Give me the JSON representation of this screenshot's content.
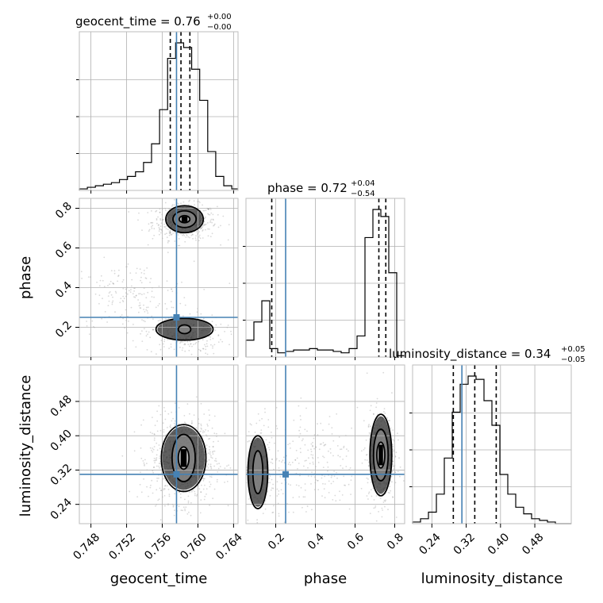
{
  "chart_data": {
    "type": "corner",
    "parameters": [
      "geocent_time",
      "phase",
      "luminosity_distance"
    ],
    "truths": {
      "geocent_time": 0.7576,
      "phase": 0.25,
      "luminosity_distance": 0.31
    },
    "titles": [
      {
        "param": "geocent_time",
        "text": "geocent_time = 0.76",
        "plus": "+0.00",
        "minus": "−0.00"
      },
      {
        "param": "phase",
        "text": "phase = 0.72",
        "plus": "+0.04",
        "minus": "−0.54"
      },
      {
        "param": "luminosity_distance",
        "text": "luminosity_distance = 0.34",
        "plus": "+0.05",
        "minus": "−0.05"
      }
    ],
    "axes": {
      "geocent_time": {
        "range": [
          0.7467,
          0.7645
        ],
        "ticks": [
          "0.748",
          "0.752",
          "0.756",
          "0.760",
          "0.764"
        ],
        "tick_values": [
          0.748,
          0.752,
          0.756,
          0.76,
          0.764
        ]
      },
      "phase": {
        "range": [
          0.05,
          0.85
        ],
        "ticks_x": [
          "0.2",
          "0.4",
          "0.6",
          "0.8"
        ],
        "tick_values_x": [
          0.2,
          0.4,
          0.6,
          0.8
        ],
        "ticks_y": [
          "0.2",
          "0.4",
          "0.6",
          "0.8"
        ],
        "tick_values_y": [
          0.2,
          0.4,
          0.6,
          0.8
        ]
      },
      "luminosity_distance": {
        "range": [
          0.195,
          0.565
        ],
        "ticks_x": [
          "0.24",
          "0.32",
          "0.40",
          "0.48"
        ],
        "tick_values_x": [
          0.24,
          0.32,
          0.4,
          0.48
        ],
        "ticks_y": [
          "0.24",
          "0.32",
          "0.40",
          "0.48"
        ],
        "tick_values_y": [
          0.24,
          0.32,
          0.4,
          0.48
        ]
      }
    },
    "quantiles": {
      "geocent_time": [
        0.7569,
        0.7581,
        0.7591
      ],
      "phase": [
        0.18,
        0.72,
        0.755
      ],
      "luminosity_distance": [
        0.29,
        0.34,
        0.39
      ]
    },
    "histograms": {
      "geocent_time": {
        "edges": [
          0.7467,
          0.7476,
          0.7485,
          0.7494,
          0.7503,
          0.7512,
          0.7521,
          0.753,
          0.7539,
          0.7548,
          0.7557,
          0.7566,
          0.7575,
          0.7584,
          0.7593,
          0.7602,
          0.7611,
          0.762,
          0.7629,
          0.7638,
          0.7645
        ],
        "counts": [
          1,
          2,
          3,
          4,
          5,
          7,
          9,
          12,
          18,
          30,
          52,
          85,
          95,
          92,
          78,
          58,
          25,
          9,
          3,
          1
        ]
      },
      "phase": {
        "edges": [
          0.05,
          0.09,
          0.13,
          0.17,
          0.21,
          0.25,
          0.29,
          0.33,
          0.37,
          0.41,
          0.45,
          0.49,
          0.53,
          0.57,
          0.61,
          0.65,
          0.69,
          0.73,
          0.77,
          0.81,
          0.85
        ],
        "counts": [
          12,
          25,
          40,
          6,
          3,
          4,
          5,
          5,
          6,
          5,
          5,
          4,
          3,
          6,
          15,
          85,
          105,
          100,
          60,
          1
        ]
      },
      "luminosity_distance": {
        "edges": [
          0.195,
          0.2135,
          0.232,
          0.2505,
          0.269,
          0.2875,
          0.306,
          0.3245,
          0.343,
          0.3615,
          0.38,
          0.3985,
          0.417,
          0.4355,
          0.454,
          0.4725,
          0.491,
          0.5095,
          0.528,
          0.5465,
          0.565
        ],
        "counts": [
          1,
          3,
          7,
          18,
          40,
          68,
          85,
          90,
          88,
          75,
          60,
          30,
          18,
          10,
          6,
          3,
          2,
          1,
          0,
          0
        ]
      }
    },
    "pairs": [
      {
        "x": "geocent_time",
        "y": "phase",
        "clusters": [
          {
            "cx": 0.7585,
            "cy": 0.73,
            "sx": 0.0018,
            "sy": 0.045,
            "weight": 0.55
          },
          {
            "cx": 0.7525,
            "cy": 0.35,
            "sx": 0.0035,
            "sy": 0.09,
            "weight": 0.2
          },
          {
            "cx": 0.7585,
            "cy": 0.16,
            "sx": 0.0022,
            "sy": 0.05,
            "weight": 0.25
          }
        ],
        "contours": [
          {
            "cx": 0.7585,
            "cy": 0.745,
            "rx": [
              0.0006,
              0.0013,
              0.0021
            ],
            "ry": [
              0.018,
              0.042,
              0.068
            ]
          },
          {
            "cx": 0.7585,
            "cy": 0.19,
            "rx": [
              0.0007,
              0.0032
            ],
            "ry": [
              0.022,
              0.055
            ]
          }
        ]
      },
      {
        "x": "geocent_time",
        "y": "luminosity_distance",
        "clusters": [
          {
            "cx": 0.7583,
            "cy": 0.345,
            "sx": 0.0018,
            "sy": 0.05,
            "weight": 1.0
          }
        ],
        "contours": [
          {
            "cx": 0.7584,
            "cy": 0.348,
            "rx": [
              0.0006,
              0.0013,
              0.0025
            ],
            "ry": [
              0.026,
              0.055,
              0.078
            ]
          }
        ]
      },
      {
        "x": "phase",
        "y": "luminosity_distance",
        "clusters": [
          {
            "cx": 0.73,
            "cy": 0.35,
            "sx": 0.035,
            "sy": 0.055,
            "weight": 0.55
          },
          {
            "cx": 0.12,
            "cy": 0.32,
            "sx": 0.04,
            "sy": 0.06,
            "weight": 0.2
          },
          {
            "cx": 0.38,
            "cy": 0.34,
            "sx": 0.12,
            "sy": 0.06,
            "weight": 0.25
          }
        ],
        "contours": [
          {
            "cx": 0.73,
            "cy": 0.355,
            "rx": [
              0.02,
              0.037,
              0.055
            ],
            "ry": [
              0.03,
              0.06,
              0.095
            ]
          },
          {
            "cx": 0.11,
            "cy": 0.315,
            "rx": [
              0.025,
              0.05
            ],
            "ry": [
              0.05,
              0.085
            ]
          }
        ]
      }
    ]
  }
}
